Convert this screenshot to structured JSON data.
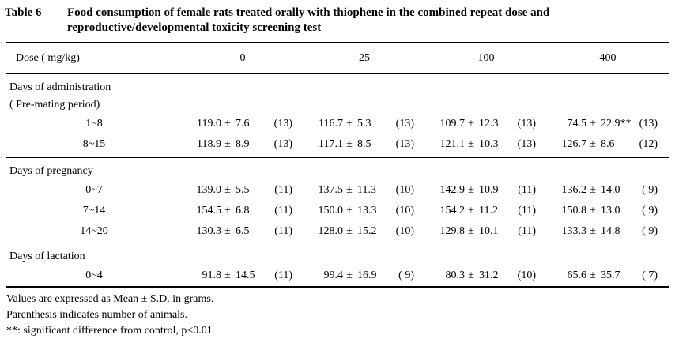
{
  "title": {
    "label": "Table 6",
    "text": "Food consumption of female rats treated orally with thiophene in the combined repeat dose and reproductive/developmental toxicity screening test"
  },
  "header": {
    "dose_label": "Dose ( mg/kg)",
    "doses": [
      "0",
      "25",
      "100",
      "400"
    ]
  },
  "symbols": {
    "plus_minus": "±"
  },
  "sections": [
    {
      "heading": [
        "Days of administration",
        "( Pre-mating period)"
      ],
      "rows": [
        {
          "label": "1~8",
          "cells": [
            {
              "mean": "119.0",
              "sd": "7.6",
              "star": "",
              "n": "(13)"
            },
            {
              "mean": "116.7",
              "sd": "5.3",
              "star": "",
              "n": "(13)"
            },
            {
              "mean": "109.7",
              "sd": "12.3",
              "star": "",
              "n": "(13)"
            },
            {
              "mean": "74.5",
              "sd": "22.9",
              "star": "**",
              "n": "(13)"
            }
          ]
        },
        {
          "label": "8~15",
          "cells": [
            {
              "mean": "118.9",
              "sd": "8.9",
              "star": "",
              "n": "(13)"
            },
            {
              "mean": "117.1",
              "sd": "8.5",
              "star": "",
              "n": "(13)"
            },
            {
              "mean": "121.1",
              "sd": "10.3",
              "star": "",
              "n": "(13)"
            },
            {
              "mean": "126.7",
              "sd": "8.6",
              "star": "",
              "n": "(12)"
            }
          ]
        }
      ]
    },
    {
      "heading": [
        "Days of pregnancy"
      ],
      "rows": [
        {
          "label": "0~7",
          "cells": [
            {
              "mean": "139.0",
              "sd": "5.5",
              "star": "",
              "n": "(11)"
            },
            {
              "mean": "137.5",
              "sd": "11.3",
              "star": "",
              "n": "(10)"
            },
            {
              "mean": "142.9",
              "sd": "10.9",
              "star": "",
              "n": "(11)"
            },
            {
              "mean": "136.2",
              "sd": "14.0",
              "star": "",
              "n": "( 9)"
            }
          ]
        },
        {
          "label": "7~14",
          "cells": [
            {
              "mean": "154.5",
              "sd": "6.8",
              "star": "",
              "n": "(11)"
            },
            {
              "mean": "150.0",
              "sd": "13.3",
              "star": "",
              "n": "(10)"
            },
            {
              "mean": "154.2",
              "sd": "11.2",
              "star": "",
              "n": "(11)"
            },
            {
              "mean": "150.8",
              "sd": "13.0",
              "star": "",
              "n": "( 9)"
            }
          ]
        },
        {
          "label": "14~20",
          "cells": [
            {
              "mean": "130.3",
              "sd": "6.5",
              "star": "",
              "n": "(11)"
            },
            {
              "mean": "128.0",
              "sd": "15.2",
              "star": "",
              "n": "(10)"
            },
            {
              "mean": "129.8",
              "sd": "10.1",
              "star": "",
              "n": "(11)"
            },
            {
              "mean": "133.3",
              "sd": "14.8",
              "star": "",
              "n": "( 9)"
            }
          ]
        }
      ]
    },
    {
      "heading": [
        "Days of lactation"
      ],
      "rows": [
        {
          "label": "0~4",
          "cells": [
            {
              "mean": "91.8",
              "sd": "14.5",
              "star": "",
              "n": "(11)"
            },
            {
              "mean": "99.4",
              "sd": "16.9",
              "star": "",
              "n": "( 9)"
            },
            {
              "mean": "80.3",
              "sd": "31.2",
              "star": "",
              "n": "(10)"
            },
            {
              "mean": "65.6",
              "sd": "35.7",
              "star": "",
              "n": "( 7)"
            }
          ]
        }
      ]
    }
  ],
  "footnotes": [
    "Values are expressed as Mean ± S.D. in grams.",
    "Parenthesis indicates number of animals.",
    "**: significant difference from control, p<0.01"
  ]
}
